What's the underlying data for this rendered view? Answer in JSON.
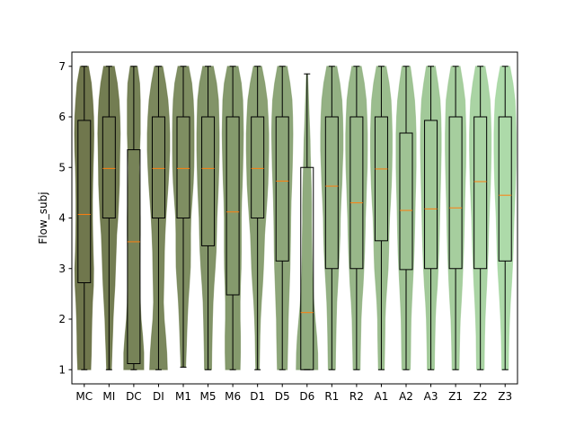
{
  "chart_data": {
    "type": "violin",
    "title": "",
    "xlabel": "",
    "ylabel": "Flow_subj",
    "ylim": [
      0.72,
      7.28
    ],
    "yticks": [
      1,
      2,
      3,
      4,
      5,
      6,
      7
    ],
    "grid": false,
    "legend": "none",
    "colors": {
      "violin_dark": "#575f2e",
      "violin_light": "#9fd39a",
      "box_edge": "#000000",
      "median_line": "#ff7f0e",
      "whisker": "#000000"
    },
    "categories": [
      "MC",
      "MI",
      "DC",
      "DI",
      "M1",
      "M5",
      "M6",
      "D1",
      "D5",
      "D6",
      "R1",
      "R2",
      "A1",
      "A2",
      "A3",
      "Z1",
      "Z2",
      "Z3"
    ],
    "series": [
      {
        "category": "MC",
        "min": 1,
        "q1": 2.72,
        "median": 4.07,
        "q3": 5.93,
        "max": 7,
        "widths": [
          0.55,
          0.6,
          0.62,
          0.65,
          0.7,
          0.78,
          0.8,
          0.75,
          0.72,
          0.7,
          0.7,
          0.72,
          0.75,
          0.8,
          0.82,
          0.8,
          0.72,
          0.6,
          0.35
        ]
      },
      {
        "category": "MI",
        "min": 1,
        "q1": 4.0,
        "median": 4.98,
        "q3": 6.0,
        "max": 7,
        "widths": [
          0.2,
          0.25,
          0.3,
          0.35,
          0.42,
          0.5,
          0.55,
          0.6,
          0.65,
          0.75,
          0.82,
          0.88,
          0.9,
          0.92,
          0.95,
          0.92,
          0.85,
          0.7,
          0.45
        ]
      },
      {
        "category": "DC",
        "min": 1,
        "q1": 1.12,
        "median": 3.53,
        "q3": 5.35,
        "max": 7,
        "widths": [
          0.85,
          0.85,
          0.75,
          0.62,
          0.55,
          0.52,
          0.5,
          0.52,
          0.55,
          0.55,
          0.52,
          0.48,
          0.45,
          0.5,
          0.55,
          0.55,
          0.55,
          0.5,
          0.3
        ]
      },
      {
        "category": "DI",
        "min": 1,
        "q1": 4.0,
        "median": 4.98,
        "q3": 6.0,
        "max": 7,
        "widths": [
          0.75,
          0.7,
          0.6,
          0.48,
          0.42,
          0.45,
          0.48,
          0.5,
          0.55,
          0.62,
          0.72,
          0.82,
          0.9,
          0.95,
          0.95,
          0.9,
          0.8,
          0.6,
          0.35
        ]
      },
      {
        "category": "M1",
        "min": 1.05,
        "q1": 4.0,
        "median": 4.98,
        "q3": 6.0,
        "max": 7,
        "widths": [
          0.2,
          0.25,
          0.3,
          0.35,
          0.42,
          0.52,
          0.6,
          0.62,
          0.62,
          0.65,
          0.75,
          0.85,
          0.9,
          0.92,
          0.92,
          0.9,
          0.85,
          0.72,
          0.45
        ]
      },
      {
        "category": "M5",
        "min": 1,
        "q1": 3.45,
        "median": 4.98,
        "q3": 6.0,
        "max": 7,
        "widths": [
          0.3,
          0.32,
          0.35,
          0.38,
          0.42,
          0.5,
          0.6,
          0.68,
          0.72,
          0.75,
          0.82,
          0.88,
          0.92,
          0.95,
          0.95,
          0.92,
          0.88,
          0.72,
          0.45
        ]
      },
      {
        "category": "M6",
        "min": 1,
        "q1": 2.48,
        "median": 4.12,
        "q3": 6.0,
        "max": 7,
        "widths": [
          0.62,
          0.65,
          0.65,
          0.62,
          0.62,
          0.65,
          0.7,
          0.72,
          0.72,
          0.72,
          0.75,
          0.8,
          0.85,
          0.88,
          0.9,
          0.88,
          0.85,
          0.72,
          0.45
        ]
      },
      {
        "category": "D1",
        "min": 1,
        "q1": 4.0,
        "median": 4.98,
        "q3": 6.0,
        "max": 7,
        "widths": [
          0.15,
          0.18,
          0.2,
          0.25,
          0.32,
          0.42,
          0.5,
          0.55,
          0.6,
          0.7,
          0.8,
          0.88,
          0.92,
          0.95,
          0.95,
          0.9,
          0.82,
          0.62,
          0.35
        ]
      },
      {
        "category": "D5",
        "min": 1,
        "q1": 3.15,
        "median": 4.73,
        "q3": 6.0,
        "max": 7,
        "widths": [
          0.42,
          0.45,
          0.48,
          0.5,
          0.55,
          0.6,
          0.65,
          0.68,
          0.7,
          0.72,
          0.75,
          0.8,
          0.85,
          0.88,
          0.9,
          0.88,
          0.82,
          0.65,
          0.4
        ]
      },
      {
        "category": "D6",
        "min": 1,
        "q1": 1.0,
        "median": 2.13,
        "q3": 5.0,
        "max": 6.85,
        "widths": [
          0.92,
          0.9,
          0.82,
          0.7,
          0.58,
          0.5,
          0.45,
          0.42,
          0.4,
          0.38,
          0.38,
          0.36,
          0.32,
          0.28,
          0.25,
          0.2,
          0.15,
          0.1,
          0.05
        ]
      },
      {
        "category": "R1",
        "min": 1,
        "q1": 3.0,
        "median": 4.63,
        "q3": 6.0,
        "max": 7,
        "widths": [
          0.3,
          0.32,
          0.35,
          0.38,
          0.42,
          0.5,
          0.58,
          0.65,
          0.7,
          0.72,
          0.78,
          0.85,
          0.9,
          0.95,
          0.95,
          0.92,
          0.85,
          0.68,
          0.42
        ]
      },
      {
        "category": "R2",
        "min": 1,
        "q1": 3.0,
        "median": 4.3,
        "q3": 6.0,
        "max": 7,
        "widths": [
          0.3,
          0.32,
          0.35,
          0.38,
          0.45,
          0.55,
          0.62,
          0.68,
          0.72,
          0.75,
          0.8,
          0.85,
          0.9,
          0.92,
          0.92,
          0.88,
          0.82,
          0.65,
          0.4
        ]
      },
      {
        "category": "A1",
        "min": 1,
        "q1": 3.55,
        "median": 4.97,
        "q3": 6.0,
        "max": 7,
        "widths": [
          0.25,
          0.28,
          0.3,
          0.32,
          0.38,
          0.48,
          0.58,
          0.62,
          0.65,
          0.7,
          0.78,
          0.85,
          0.9,
          0.92,
          0.92,
          0.88,
          0.82,
          0.65,
          0.4
        ]
      },
      {
        "category": "A2",
        "min": 1,
        "q1": 2.98,
        "median": 4.15,
        "q3": 5.68,
        "max": 7,
        "widths": [
          0.35,
          0.38,
          0.4,
          0.42,
          0.48,
          0.55,
          0.62,
          0.68,
          0.72,
          0.75,
          0.78,
          0.82,
          0.85,
          0.85,
          0.85,
          0.8,
          0.72,
          0.55,
          0.35
        ]
      },
      {
        "category": "A3",
        "min": 1,
        "q1": 3.0,
        "median": 4.18,
        "q3": 5.93,
        "max": 7,
        "widths": [
          0.3,
          0.32,
          0.35,
          0.38,
          0.45,
          0.55,
          0.62,
          0.68,
          0.72,
          0.75,
          0.78,
          0.82,
          0.85,
          0.88,
          0.88,
          0.85,
          0.78,
          0.6,
          0.38
        ]
      },
      {
        "category": "Z1",
        "min": 1,
        "q1": 3.0,
        "median": 4.2,
        "q3": 6.0,
        "max": 7,
        "widths": [
          0.3,
          0.32,
          0.35,
          0.4,
          0.48,
          0.56,
          0.62,
          0.68,
          0.72,
          0.75,
          0.78,
          0.82,
          0.86,
          0.88,
          0.88,
          0.85,
          0.8,
          0.62,
          0.38
        ]
      },
      {
        "category": "Z2",
        "min": 1,
        "q1": 3.0,
        "median": 4.72,
        "q3": 6.0,
        "max": 7,
        "widths": [
          0.32,
          0.34,
          0.36,
          0.4,
          0.46,
          0.54,
          0.6,
          0.66,
          0.7,
          0.74,
          0.8,
          0.86,
          0.9,
          0.92,
          0.92,
          0.88,
          0.82,
          0.64,
          0.4
        ]
      },
      {
        "category": "Z3",
        "min": 1,
        "q1": 3.15,
        "median": 4.45,
        "q3": 6.0,
        "max": 7,
        "widths": [
          0.28,
          0.3,
          0.33,
          0.38,
          0.45,
          0.54,
          0.62,
          0.68,
          0.72,
          0.76,
          0.82,
          0.88,
          0.92,
          0.94,
          0.94,
          0.9,
          0.84,
          0.66,
          0.4
        ]
      }
    ]
  }
}
